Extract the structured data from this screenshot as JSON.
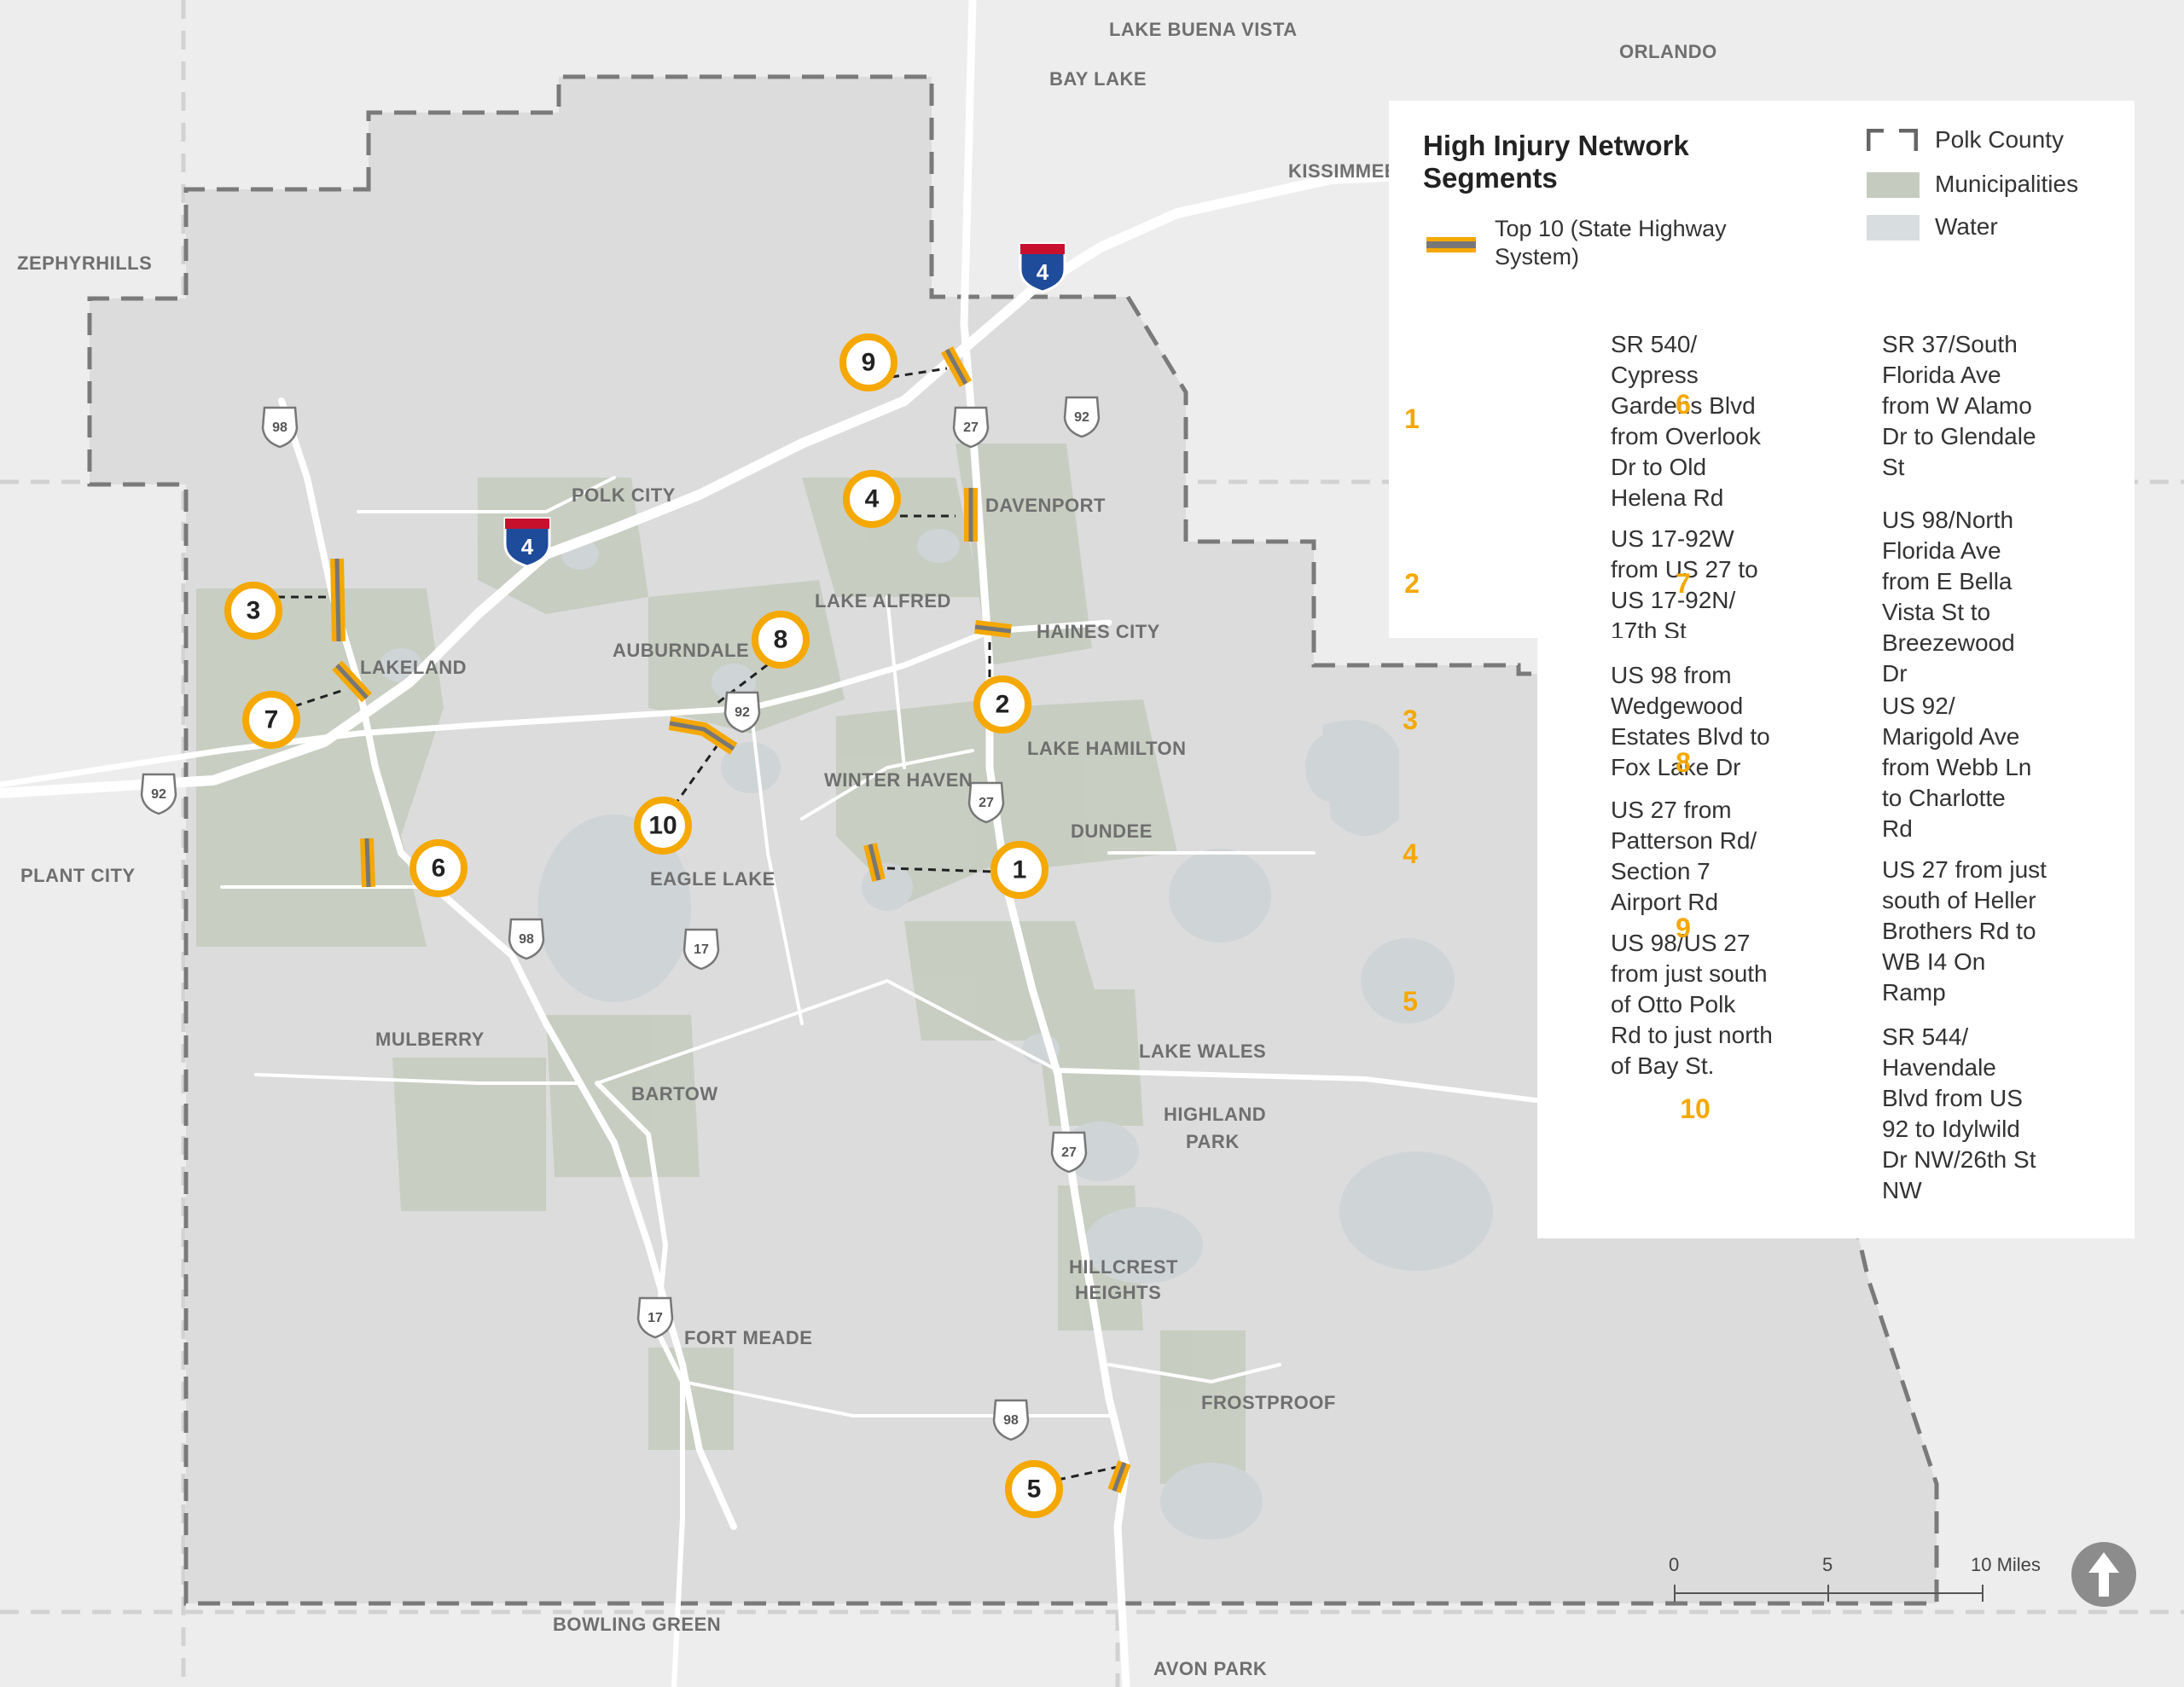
{
  "map": {
    "places": [
      {
        "id": "lake-buena-vista",
        "label": "LAKE BUENA VISTA"
      },
      {
        "id": "orlando",
        "label": "ORLANDO"
      },
      {
        "id": "bay-lake",
        "label": "BAY LAKE"
      },
      {
        "id": "kissimmee",
        "label": "KISSIMMEE"
      },
      {
        "id": "zephyrhills",
        "label": "ZEPHYRHILLS"
      },
      {
        "id": "polk-city",
        "label": "POLK CITY"
      },
      {
        "id": "davenport",
        "label": "DAVENPORT"
      },
      {
        "id": "lake-alfred",
        "label": "LAKE ALFRED"
      },
      {
        "id": "haines-city",
        "label": "HAINES CITY"
      },
      {
        "id": "lakeland",
        "label": "LAKELAND"
      },
      {
        "id": "auburndale",
        "label": "AUBURNDALE"
      },
      {
        "id": "lake-hamilton",
        "label": "LAKE HAMILTON"
      },
      {
        "id": "winter-haven",
        "label": "WINTER HAVEN"
      },
      {
        "id": "dundee",
        "label": "DUNDEE"
      },
      {
        "id": "plant-city",
        "label": "PLANT CITY"
      },
      {
        "id": "eagle-lake",
        "label": "EAGLE LAKE"
      },
      {
        "id": "mulberry",
        "label": "MULBERRY"
      },
      {
        "id": "bartow",
        "label": "BARTOW"
      },
      {
        "id": "lake-wales",
        "label": "LAKE WALES"
      },
      {
        "id": "highland",
        "label": "HIGHLAND"
      },
      {
        "id": "park",
        "label": "PARK"
      },
      {
        "id": "hillcrest",
        "label": "HILLCREST"
      },
      {
        "id": "heights",
        "label": "HEIGHTS"
      },
      {
        "id": "fort-meade",
        "label": "FORT MEADE"
      },
      {
        "id": "frostproof",
        "label": "FROSTPROOF"
      },
      {
        "id": "bowling-green",
        "label": "BOWLING GREEN"
      },
      {
        "id": "avon-park",
        "label": "AVON PARK"
      }
    ],
    "shields": [
      {
        "id": "i4-ne",
        "kind": "interstate",
        "num": "4"
      },
      {
        "id": "i4-polk",
        "kind": "interstate",
        "num": "4"
      },
      {
        "id": "us98-nw",
        "kind": "us",
        "num": "98"
      },
      {
        "id": "us27-n",
        "kind": "us",
        "num": "27"
      },
      {
        "id": "us92-ne",
        "kind": "us",
        "num": "92"
      },
      {
        "id": "us92-center",
        "kind": "us",
        "num": "92"
      },
      {
        "id": "us27-c",
        "kind": "us",
        "num": "27"
      },
      {
        "id": "us92-w",
        "kind": "us",
        "num": "92"
      },
      {
        "id": "us98-c",
        "kind": "us",
        "num": "98"
      },
      {
        "id": "us17-c",
        "kind": "us",
        "num": "17"
      },
      {
        "id": "us27-s",
        "kind": "us",
        "num": "27"
      },
      {
        "id": "us17-s",
        "kind": "us",
        "num": "17"
      },
      {
        "id": "us98-s",
        "kind": "us",
        "num": "98"
      }
    ],
    "markers": [
      "1",
      "2",
      "3",
      "4",
      "5",
      "6",
      "7",
      "8",
      "9",
      "10"
    ]
  },
  "legend": {
    "title_line1": "High Injury Network",
    "title_line2": "Segments",
    "hin_label_line1": "Top 10 (State Highway",
    "hin_label_line2": "System)",
    "county_label": "Polk County",
    "muni_label": "Municipalities",
    "water_label": "Water",
    "colors": {
      "hin_edge": "#f5a800",
      "hin_core": "#777777",
      "muni": "#c5ccbf",
      "water": "#d8dde0"
    },
    "segments": [
      {
        "num": "1",
        "lines": [
          "SR 540/",
          "Cypress",
          "Gardens Blvd",
          "from Overlook",
          "Dr to Old",
          "Helena Rd"
        ]
      },
      {
        "num": "2",
        "lines": [
          "US 17-92W",
          "from US 27 to",
          "US 17-92N/",
          "17th St"
        ]
      },
      {
        "num": "3",
        "lines": [
          "US 98 from",
          "Wedgewood",
          "Estates Blvd to",
          "Fox Lake Dr"
        ]
      },
      {
        "num": "4",
        "lines": [
          "US 27 from",
          "Patterson Rd/",
          "Section 7",
          "Airport Rd"
        ]
      },
      {
        "num": "5",
        "lines": [
          "US 98/US 27",
          "from just south",
          "of Otto Polk",
          "Rd to just north",
          "of Bay St."
        ]
      },
      {
        "num": "6",
        "lines": [
          "SR 37/South",
          "Florida Ave",
          "from W Alamo",
          "Dr to Glendale",
          "St"
        ]
      },
      {
        "num": "7",
        "lines": [
          "US 98/North",
          "Florida Ave",
          "from  E Bella",
          "Vista St to",
          "Breezewood",
          "Dr"
        ]
      },
      {
        "num": "8",
        "lines": [
          "US 92/",
          "Marigold Ave",
          "from Webb Ln",
          "to Charlotte",
          "Rd"
        ]
      },
      {
        "num": "9",
        "lines": [
          "US 27 from just",
          "south of Heller",
          "Brothers Rd to",
          "WB I4 On",
          "Ramp"
        ]
      },
      {
        "num": "10",
        "lines": [
          "SR 544/",
          "Havendale",
          "Blvd from US",
          "92 to Idylwild",
          "Dr NW/26th St",
          "NW"
        ]
      }
    ]
  },
  "scale": {
    "tick0": "0",
    "tick1": "5",
    "tick2": "10 Miles"
  },
  "north_icon": "north-arrow-icon"
}
